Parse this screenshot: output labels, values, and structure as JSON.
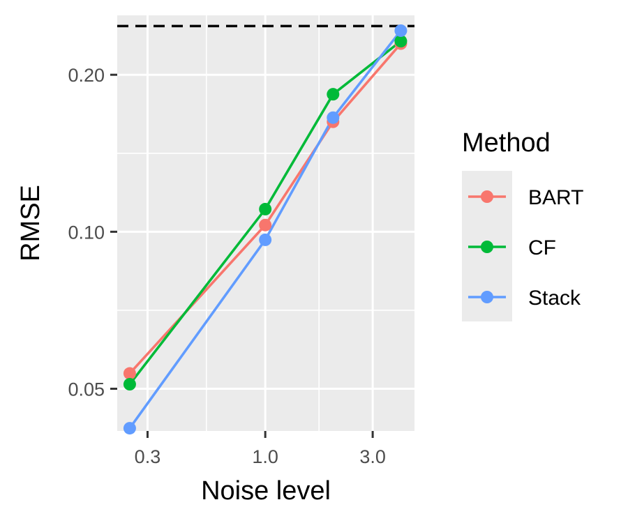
{
  "chart_data": {
    "type": "line",
    "title": "",
    "xlabel": "Noise level",
    "ylabel": "RMSE",
    "x_scale": "log",
    "y_scale": "log",
    "xlim": [
      0.22,
      4.6
    ],
    "ylim": [
      0.0415,
      0.26
    ],
    "x_ticks": [
      0.3,
      1.0,
      3.0
    ],
    "x_tick_labels": [
      "0.3",
      "1.0",
      "3.0"
    ],
    "y_ticks": [
      0.05,
      0.1,
      0.2
    ],
    "y_tick_labels": [
      "0.05",
      "0.10",
      "0.20"
    ],
    "grid": true,
    "x": [
      0.25,
      1.0,
      2.0,
      4.0
    ],
    "series": [
      {
        "name": "BART",
        "color": "#F8766D",
        "values": [
          0.0535,
          0.103,
          0.1625,
          0.2295
        ]
      },
      {
        "name": "CF",
        "color": "#00BA38",
        "values": [
          0.051,
          0.1105,
          0.1835,
          0.232
        ]
      },
      {
        "name": "Stack",
        "color": "#619CFF",
        "values": [
          0.042,
          0.0965,
          0.1655,
          0.243
        ]
      }
    ],
    "reference_line": {
      "y": 0.248,
      "style": "dashed",
      "color": "#000000"
    },
    "legend": {
      "title": "Method",
      "position": "right",
      "entries": [
        "BART",
        "CF",
        "Stack"
      ]
    }
  }
}
